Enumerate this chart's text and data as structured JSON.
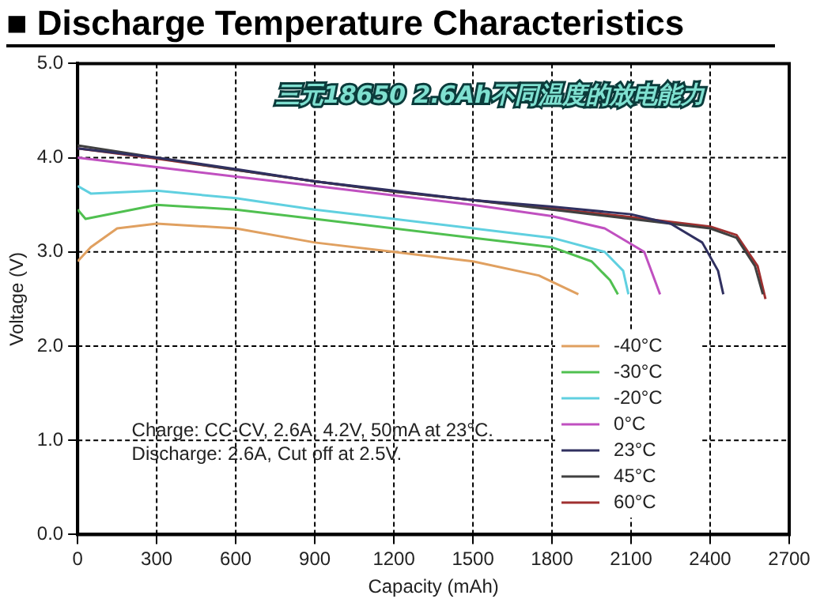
{
  "chart_data": {
    "type": "line",
    "title": "■ Discharge Temperature Characteristics",
    "subtitle": "三元18650 2.6Ah不同温度的放电能力",
    "xlabel": "Capacity (mAh)",
    "ylabel": "Voltage (V)",
    "xlim": [
      0,
      2700
    ],
    "xticks": [
      0,
      300,
      600,
      900,
      1200,
      1500,
      1800,
      2100,
      2400,
      2700
    ],
    "ylim": [
      0,
      5
    ],
    "yticks": [
      {
        "value": 0,
        "label": "0.0"
      },
      {
        "value": 1,
        "label": "1.0"
      },
      {
        "value": 2,
        "label": "2.0"
      },
      {
        "value": 3,
        "label": "3.0"
      },
      {
        "value": 4,
        "label": "4.0"
      },
      {
        "value": 5,
        "label": "5.0"
      }
    ],
    "grid": true,
    "legend": "right",
    "marker": "none",
    "line_style": "solid",
    "annotations": [
      "Charge: CC-CV, 2.6A, 4.2V, 50mA at 23°C.",
      "Discharge: 2.6A, Cut off at 2.5V."
    ],
    "series": [
      {
        "name": "-40°C",
        "color": "#e0a060",
        "x": [
          0,
          50,
          150,
          300,
          600,
          900,
          1200,
          1500,
          1750,
          1900
        ],
        "values": [
          2.9,
          3.05,
          3.25,
          3.3,
          3.25,
          3.1,
          3.0,
          2.9,
          2.75,
          2.55
        ]
      },
      {
        "name": "-30°C",
        "color": "#50c050",
        "x": [
          0,
          30,
          300,
          600,
          900,
          1200,
          1500,
          1800,
          1950,
          2020,
          2050
        ],
        "values": [
          3.45,
          3.35,
          3.5,
          3.45,
          3.35,
          3.25,
          3.15,
          3.05,
          2.9,
          2.7,
          2.55
        ]
      },
      {
        "name": "-20°C",
        "color": "#60d0e0",
        "x": [
          0,
          50,
          300,
          600,
          900,
          1200,
          1500,
          1800,
          2000,
          2070,
          2090
        ],
        "values": [
          3.7,
          3.62,
          3.65,
          3.57,
          3.45,
          3.35,
          3.25,
          3.15,
          3.0,
          2.8,
          2.55
        ]
      },
      {
        "name": "0°C",
        "color": "#c050c0",
        "x": [
          0,
          300,
          600,
          900,
          1200,
          1500,
          1800,
          2000,
          2150,
          2210
        ],
        "values": [
          4.0,
          3.9,
          3.8,
          3.7,
          3.6,
          3.5,
          3.38,
          3.25,
          3.0,
          2.55
        ]
      },
      {
        "name": "23°C",
        "color": "#303060",
        "x": [
          0,
          300,
          600,
          900,
          1200,
          1500,
          1800,
          2100,
          2250,
          2370,
          2430,
          2450
        ],
        "values": [
          4.1,
          4.0,
          3.88,
          3.75,
          3.65,
          3.55,
          3.48,
          3.4,
          3.3,
          3.1,
          2.8,
          2.55
        ]
      },
      {
        "name": "45°C",
        "color": "#404040",
        "x": [
          0,
          300,
          600,
          900,
          1200,
          1500,
          1800,
          2100,
          2400,
          2500,
          2570,
          2600
        ],
        "values": [
          4.13,
          4.0,
          3.87,
          3.75,
          3.64,
          3.55,
          3.45,
          3.35,
          3.25,
          3.15,
          2.85,
          2.55
        ]
      },
      {
        "name": "60°C",
        "color": "#a03030",
        "x": [
          0,
          300,
          600,
          900,
          1200,
          1500,
          1800,
          2100,
          2400,
          2500,
          2580,
          2610
        ],
        "values": [
          4.1,
          3.99,
          3.87,
          3.75,
          3.64,
          3.55,
          3.46,
          3.37,
          3.27,
          3.18,
          2.85,
          2.5
        ]
      }
    ]
  }
}
